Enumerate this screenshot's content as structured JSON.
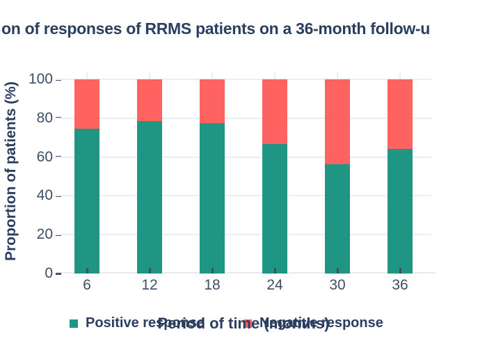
{
  "chart_data": {
    "type": "bar",
    "stacked": true,
    "title": "on of responses of RRMS patients on a 36-month follow-u",
    "xlabel": "Period of time (months)",
    "ylabel": "Proportion of patients (%)",
    "categories": [
      "6",
      "12",
      "18",
      "24",
      "30",
      "36"
    ],
    "series": [
      {
        "name": "Positive response",
        "color": "#1f9583",
        "values": [
          74.6,
          78.6,
          77.4,
          66.5,
          56.3,
          64.3
        ]
      },
      {
        "name": "Negative response",
        "color": "#ff6361",
        "values": [
          25.4,
          21.4,
          22.6,
          33.5,
          43.7,
          35.7
        ]
      }
    ],
    "ylim": [
      0,
      100
    ],
    "yticks": [
      0,
      20,
      40,
      60,
      80,
      100
    ],
    "grid": true,
    "legend_position": "bottom"
  },
  "colors": {
    "heading_text": "#2a3f5f",
    "tick_text": "#3d4e66",
    "gridline": "#ebeef7",
    "axis_line": "#e7eaf3",
    "tick_mark": "#47536a",
    "positive": "#1f9583",
    "negative": "#ff6361"
  }
}
